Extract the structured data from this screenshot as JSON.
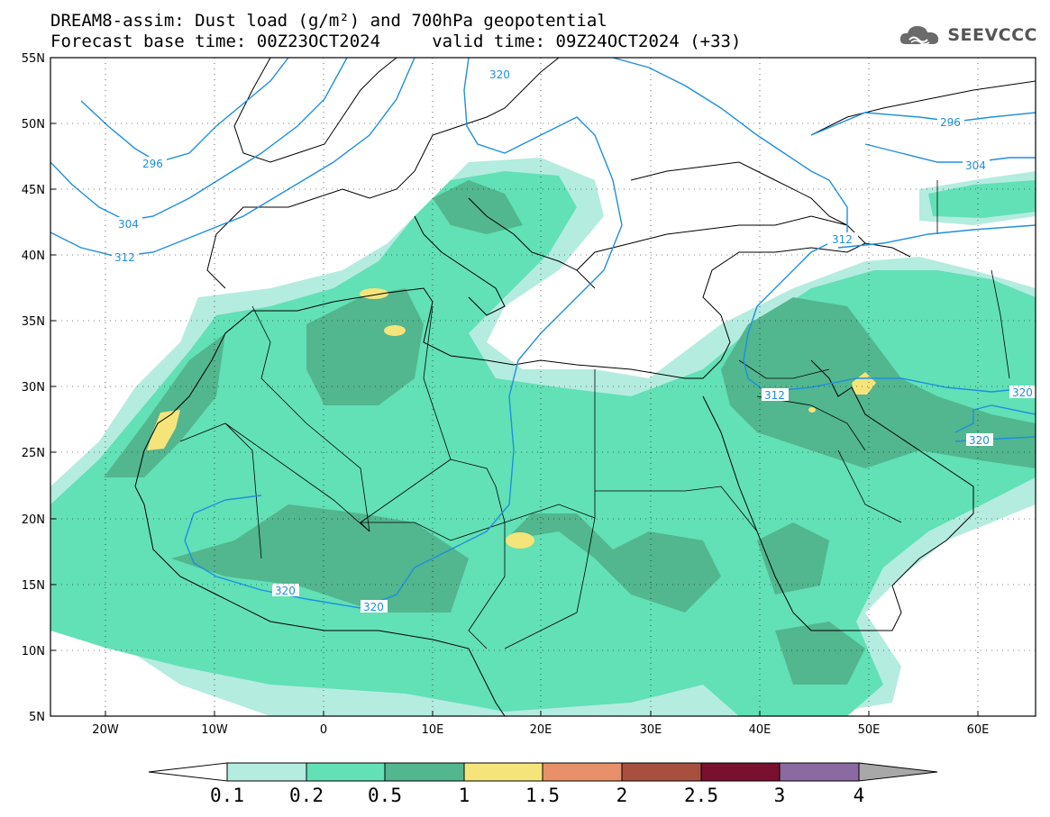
{
  "header": {
    "title_line1": "DREAM8-assim: Dust load (g/m²) and 700hPa geopotential",
    "title_line2": "Forecast base time: 00Z23OCT2024     valid time: 09Z24OCT2024 (+33)"
  },
  "logo": {
    "text": "SEEVCCC",
    "icon": "cloud-icon"
  },
  "map": {
    "lat_labels": [
      "55N",
      "50N",
      "45N",
      "40N",
      "35N",
      "30N",
      "25N",
      "20N",
      "15N",
      "10N",
      "5N"
    ],
    "lon_labels": [
      "20W",
      "10W",
      "0",
      "10E",
      "20E",
      "30E",
      "40E",
      "50E",
      "60E"
    ],
    "contour_labels": [
      "320",
      "296",
      "304",
      "312",
      "296",
      "304",
      "312",
      "312",
      "320",
      "320",
      "320",
      "320"
    ],
    "colors": {
      "geopotential": "#1e8fe0",
      "coast": "#000000"
    }
  },
  "colorbar": {
    "labels": [
      "0.1",
      "0.2",
      "0.5",
      "1",
      "1.5",
      "2",
      "2.5",
      "3",
      "4"
    ],
    "colors": [
      "#ffffff",
      "#b4ece0",
      "#62e0b6",
      "#52b68e",
      "#f5e47a",
      "#e8906a",
      "#a8503e",
      "#7a1030",
      "#8a6aa0",
      "#a8a8a8"
    ]
  }
}
